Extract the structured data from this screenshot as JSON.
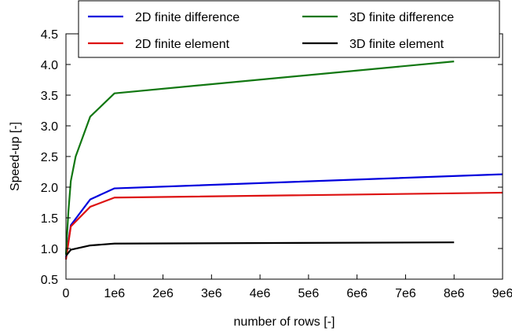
{
  "chart_data": {
    "type": "line",
    "title": "",
    "xlabel": "number of rows [-]",
    "ylabel": "Speed-up [-]",
    "xlim": [
      0,
      9000000
    ],
    "ylim": [
      0.5,
      4.5
    ],
    "x_ticks": [
      0,
      1000000,
      2000000,
      3000000,
      4000000,
      5000000,
      6000000,
      7000000,
      8000000,
      9000000
    ],
    "x_tick_labels": [
      "0",
      "1e6",
      "2e6",
      "3e6",
      "4e6",
      "5e6",
      "6e6",
      "7e6",
      "8e6",
      "9e6"
    ],
    "y_ticks": [
      0.5,
      1.0,
      1.5,
      2.0,
      2.5,
      3.0,
      3.5,
      4.0,
      4.5
    ],
    "y_tick_labels": [
      "0.5",
      "1.0",
      "1.5",
      "2.0",
      "2.5",
      "3.0",
      "3.5",
      "4.0",
      "4.5"
    ],
    "grid": false,
    "legend_position": "top",
    "series": [
      {
        "name": "2D finite difference",
        "color": "#0000dd",
        "x": [
          0,
          100000,
          500000,
          1000000,
          9000000
        ],
        "y": [
          0.85,
          1.38,
          1.8,
          1.98,
          2.21
        ]
      },
      {
        "name": "2D finite element",
        "color": "#dd1111",
        "x": [
          0,
          100000,
          500000,
          1000000,
          9000000
        ],
        "y": [
          0.82,
          1.36,
          1.68,
          1.83,
          1.91
        ]
      },
      {
        "name": "3D finite difference",
        "color": "#117711",
        "x": [
          0,
          50000,
          100000,
          200000,
          500000,
          1000000,
          8000000
        ],
        "y": [
          0.9,
          1.6,
          2.1,
          2.5,
          3.15,
          3.53,
          4.05
        ]
      },
      {
        "name": "3D finite element",
        "color": "#000000",
        "x": [
          0,
          100000,
          500000,
          1000000,
          8000000
        ],
        "y": [
          0.88,
          0.98,
          1.05,
          1.08,
          1.1
        ]
      }
    ]
  }
}
